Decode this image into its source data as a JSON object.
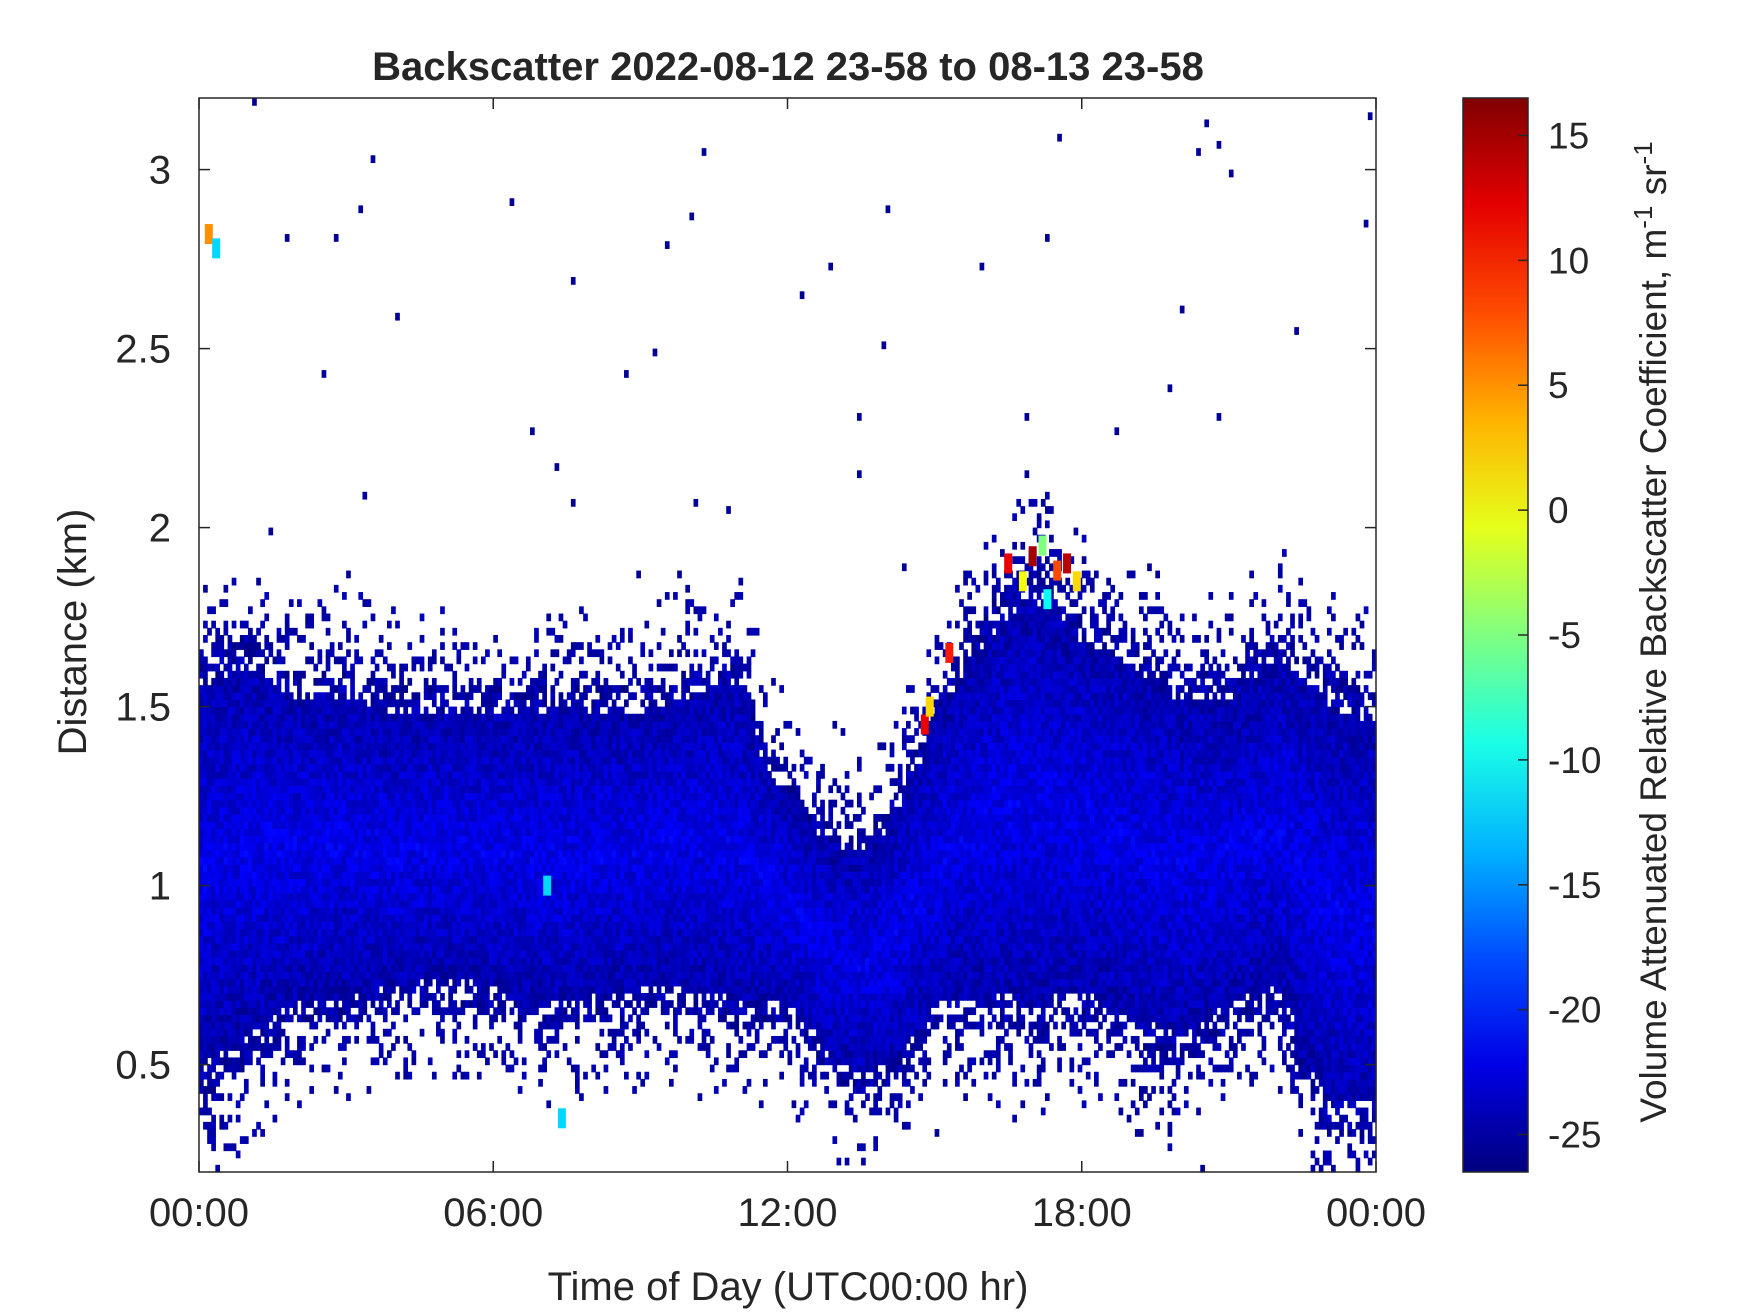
{
  "chart_data": {
    "type": "heatmap",
    "title": "Backscatter 2022-08-12 23-58 to 08-13 23-58",
    "xlabel": "Time of Day (UTC00:00 hr)",
    "ylabel": "Distance (km)",
    "xlim": [
      0,
      24
    ],
    "ylim": [
      0.2,
      3.2
    ],
    "x_ticks": [
      {
        "value": 0,
        "label": "00:00"
      },
      {
        "value": 6,
        "label": "06:00"
      },
      {
        "value": 12,
        "label": "12:00"
      },
      {
        "value": 18,
        "label": "18:00"
      },
      {
        "value": 24,
        "label": "00:00"
      }
    ],
    "y_ticks": [
      {
        "value": 0.5,
        "label": "0.5"
      },
      {
        "value": 1,
        "label": "1"
      },
      {
        "value": 1.5,
        "label": "1.5"
      },
      {
        "value": 2,
        "label": "2"
      },
      {
        "value": 2.5,
        "label": "2.5"
      },
      {
        "value": 3,
        "label": "3"
      }
    ],
    "colorbar": {
      "label": "Volume Attenuated Relative Backscatter Coefficient, m",
      "label_sup1": "-1",
      "label_mid": " sr",
      "label_sup2": "-1",
      "range": [
        -26.5,
        16.5
      ],
      "colormap": "jet",
      "ticks": [
        {
          "value": 15,
          "label": "15"
        },
        {
          "value": 10,
          "label": "10"
        },
        {
          "value": 5,
          "label": "5"
        },
        {
          "value": 0,
          "label": "0"
        },
        {
          "value": -5,
          "label": "-5"
        },
        {
          "value": -10,
          "label": "-10"
        },
        {
          "value": -15,
          "label": "-15"
        },
        {
          "value": -20,
          "label": "-20"
        },
        {
          "value": -25,
          "label": "-25"
        }
      ]
    },
    "layer_profile": {
      "time_hr": [
        0,
        1,
        2,
        3,
        4,
        5,
        6,
        7,
        8,
        9,
        10,
        11,
        11.5,
        12,
        12.5,
        13,
        13.5,
        14,
        14.5,
        15,
        15.5,
        16,
        16.5,
        17,
        17.5,
        18,
        19,
        20,
        21,
        22,
        23,
        24
      ],
      "bottom_km": [
        0.4,
        0.5,
        0.6,
        0.62,
        0.65,
        0.68,
        0.65,
        0.6,
        0.62,
        0.65,
        0.65,
        0.6,
        0.62,
        0.62,
        0.55,
        0.45,
        0.42,
        0.45,
        0.5,
        0.6,
        0.6,
        0.6,
        0.6,
        0.55,
        0.6,
        0.62,
        0.55,
        0.5,
        0.6,
        0.65,
        0.3,
        0.3
      ],
      "top_km": [
        1.65,
        1.7,
        1.6,
        1.6,
        1.55,
        1.55,
        1.55,
        1.55,
        1.55,
        1.55,
        1.6,
        1.65,
        1.4,
        1.3,
        1.2,
        1.15,
        1.15,
        1.2,
        1.35,
        1.5,
        1.65,
        1.75,
        1.85,
        1.9,
        1.85,
        1.75,
        1.7,
        1.6,
        1.6,
        1.7,
        1.6,
        1.55
      ],
      "core_value": -22
    },
    "hotspots": [
      {
        "time_hr": 0.2,
        "distance_km": 2.82,
        "value": 5
      },
      {
        "time_hr": 0.35,
        "distance_km": 2.78,
        "value": -12
      },
      {
        "time_hr": 14.8,
        "distance_km": 1.45,
        "value": 12
      },
      {
        "time_hr": 14.9,
        "distance_km": 1.5,
        "value": 2
      },
      {
        "time_hr": 15.3,
        "distance_km": 1.65,
        "value": 10
      },
      {
        "time_hr": 16.5,
        "distance_km": 1.9,
        "value": 12
      },
      {
        "time_hr": 16.8,
        "distance_km": 1.85,
        "value": 0
      },
      {
        "time_hr": 17.0,
        "distance_km": 1.92,
        "value": 15
      },
      {
        "time_hr": 17.2,
        "distance_km": 1.95,
        "value": -5
      },
      {
        "time_hr": 17.5,
        "distance_km": 1.88,
        "value": 8
      },
      {
        "time_hr": 17.7,
        "distance_km": 1.9,
        "value": 14
      },
      {
        "time_hr": 17.9,
        "distance_km": 1.85,
        "value": 2
      },
      {
        "time_hr": 17.3,
        "distance_km": 1.8,
        "value": -10
      },
      {
        "time_hr": 7.1,
        "distance_km": 1.0,
        "value": -12
      },
      {
        "time_hr": 7.4,
        "distance_km": 0.35,
        "value": -12
      }
    ],
    "grid": false,
    "legend": "none"
  }
}
